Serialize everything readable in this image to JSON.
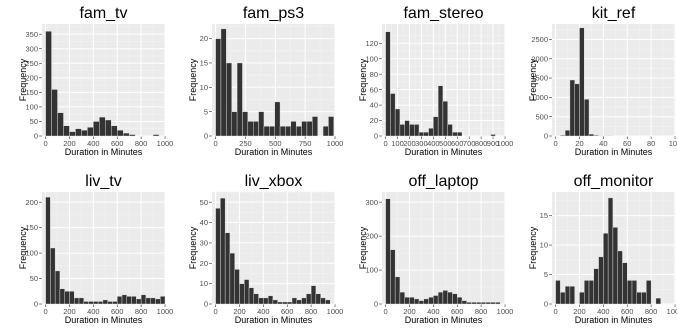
{
  "chart_data": [
    {
      "type": "bar",
      "title": "fam_tv",
      "xlabel": "Duration in Minutes",
      "ylabel": "Frequency",
      "xlim": [
        -30,
        1000
      ],
      "ylim": [
        0,
        385
      ],
      "xticks": [
        0,
        200,
        400,
        600,
        800,
        1000
      ],
      "yticks": [
        0,
        50,
        100,
        150,
        200,
        250,
        300,
        350
      ],
      "bin_width": 50,
      "x": [
        0,
        50,
        100,
        150,
        200,
        250,
        300,
        350,
        400,
        450,
        500,
        550,
        600,
        650,
        700,
        750,
        800,
        850,
        900,
        950
      ],
      "values": [
        360,
        160,
        80,
        35,
        15,
        25,
        20,
        30,
        50,
        65,
        55,
        35,
        20,
        10,
        5,
        0,
        0,
        0,
        5,
        0
      ]
    },
    {
      "type": "bar",
      "title": "fam_ps3",
      "xlabel": "Duration in Minutes",
      "ylabel": "Frequency",
      "xlim": [
        -30,
        1000
      ],
      "ylim": [
        0,
        23
      ],
      "xticks": [
        0,
        250,
        500,
        750,
        1000
      ],
      "yticks": [
        0,
        5,
        10,
        15,
        20
      ],
      "bin_width": 45,
      "x": [
        0,
        45,
        90,
        135,
        180,
        225,
        270,
        315,
        360,
        405,
        450,
        495,
        540,
        585,
        630,
        675,
        720,
        765,
        810,
        855,
        900,
        945
      ],
      "values": [
        20,
        22,
        15,
        5,
        15,
        5,
        3,
        3,
        5,
        2,
        2,
        7,
        2,
        2,
        3,
        2,
        3,
        3,
        4,
        0,
        2,
        4
      ]
    },
    {
      "type": "bar",
      "title": "fam_stereo",
      "xlabel": "Duration in Minutes",
      "ylabel": "Frequency",
      "xlim": [
        -30,
        1000
      ],
      "ylim": [
        0,
        145
      ],
      "xticks": [
        0,
        100,
        200,
        300,
        400,
        500,
        600,
        700,
        800,
        900,
        1000
      ],
      "yticks": [
        0,
        20,
        40,
        60,
        80,
        100,
        120
      ],
      "bin_width": 40,
      "x": [
        0,
        40,
        80,
        120,
        160,
        200,
        240,
        280,
        320,
        360,
        400,
        440,
        480,
        520,
        560,
        600,
        640,
        680,
        720,
        760,
        800,
        840,
        880,
        920,
        960
      ],
      "values": [
        135,
        55,
        35,
        15,
        20,
        15,
        15,
        5,
        5,
        10,
        25,
        65,
        45,
        15,
        5,
        5,
        0,
        0,
        0,
        0,
        0,
        0,
        2,
        0,
        0
      ]
    },
    {
      "type": "bar",
      "title": "kit_ref",
      "xlabel": "Duration in Minutes",
      "ylabel": "Frequency",
      "xlim": [
        -3,
        100
      ],
      "ylim": [
        0,
        2900
      ],
      "xticks": [
        0,
        20,
        40,
        60,
        80,
        100
      ],
      "yticks": [
        0,
        500,
        1000,
        1500,
        2000,
        2500
      ],
      "bin_width": 4,
      "x": [
        0,
        4,
        8,
        12,
        16,
        20,
        24,
        28,
        32,
        36,
        40,
        44,
        48,
        52,
        56,
        60,
        64,
        68,
        72,
        76,
        80,
        84,
        88,
        92,
        96
      ],
      "values": [
        0,
        20,
        150,
        1450,
        1350,
        2800,
        950,
        50,
        20,
        10,
        10,
        5,
        0,
        0,
        0,
        0,
        0,
        0,
        0,
        0,
        0,
        0,
        0,
        0,
        0
      ]
    },
    {
      "type": "bar",
      "title": "liv_tv",
      "xlabel": "Duration in Minutes",
      "ylabel": "Frequency",
      "xlim": [
        -30,
        1000
      ],
      "ylim": [
        0,
        220
      ],
      "xticks": [
        0,
        200,
        400,
        600,
        800,
        1000
      ],
      "yticks": [
        0,
        50,
        100,
        150,
        200
      ],
      "bin_width": 40,
      "x": [
        0,
        40,
        80,
        120,
        160,
        200,
        240,
        280,
        320,
        360,
        400,
        440,
        480,
        520,
        560,
        600,
        640,
        680,
        720,
        760,
        800,
        840,
        880,
        920,
        960
      ],
      "values": [
        210,
        110,
        65,
        30,
        25,
        25,
        12,
        12,
        5,
        5,
        5,
        5,
        8,
        5,
        5,
        15,
        18,
        15,
        15,
        10,
        18,
        12,
        12,
        10,
        15
      ]
    },
    {
      "type": "bar",
      "title": "liv_xbox",
      "xlabel": "Duration in Minutes",
      "ylabel": "Frequency",
      "xlim": [
        -30,
        1000
      ],
      "ylim": [
        0,
        55
      ],
      "xticks": [
        0,
        200,
        400,
        600,
        800,
        1000
      ],
      "yticks": [
        0,
        10,
        20,
        30,
        40,
        50
      ],
      "bin_width": 40,
      "x": [
        0,
        40,
        80,
        120,
        160,
        200,
        240,
        280,
        320,
        360,
        400,
        440,
        480,
        520,
        560,
        600,
        640,
        680,
        720,
        760,
        800,
        840,
        880,
        920
      ],
      "values": [
        47,
        52,
        35,
        25,
        17,
        10,
        12,
        8,
        5,
        3,
        3,
        4,
        2,
        1,
        1,
        1,
        3,
        2,
        3,
        5,
        9,
        5,
        3,
        2
      ]
    },
    {
      "type": "bar",
      "title": "off_laptop",
      "xlabel": "Duration in Minutes",
      "ylabel": "Frequency",
      "xlim": [
        -30,
        1000
      ],
      "ylim": [
        0,
        330
      ],
      "xticks": [
        0,
        200,
        400,
        600,
        800,
        1000
      ],
      "yticks": [
        0,
        100,
        200,
        300
      ],
      "bin_width": 40,
      "x": [
        0,
        40,
        80,
        120,
        160,
        200,
        240,
        280,
        320,
        360,
        400,
        440,
        480,
        520,
        560,
        600,
        640,
        680,
        720,
        760,
        800,
        840,
        880,
        920,
        960
      ],
      "values": [
        310,
        160,
        80,
        35,
        20,
        20,
        15,
        10,
        15,
        20,
        25,
        35,
        40,
        35,
        30,
        20,
        10,
        5,
        5,
        5,
        5,
        5,
        5,
        5,
        0
      ]
    },
    {
      "type": "bar",
      "title": "off_monitor",
      "xlabel": "Duration in Minutes",
      "ylabel": "Frequency",
      "xlim": [
        -30,
        1000
      ],
      "ylim": [
        0,
        19
      ],
      "xticks": [
        0,
        200,
        400,
        600,
        800,
        1000
      ],
      "yticks": [
        0,
        5,
        10,
        15
      ],
      "bin_width": 40,
      "x": [
        0,
        40,
        80,
        120,
        160,
        200,
        240,
        280,
        320,
        360,
        400,
        440,
        480,
        520,
        560,
        600,
        640,
        680,
        720,
        760,
        800,
        840
      ],
      "values": [
        4,
        2,
        3,
        3,
        0,
        2,
        4,
        4,
        6,
        8,
        12,
        18,
        13,
        9,
        7,
        4,
        4,
        2,
        2,
        4,
        0,
        1
      ]
    }
  ]
}
